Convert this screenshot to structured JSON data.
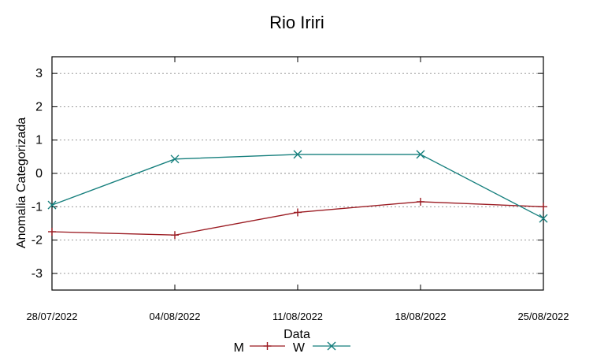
{
  "chart_data": {
    "type": "line",
    "title": "Rio Iriri",
    "xlabel": "Data",
    "ylabel": "Anomalia Categorizada",
    "categories": [
      "28/07/2022",
      "04/08/2022",
      "11/08/2022",
      "18/08/2022",
      "25/08/2022"
    ],
    "ylim": [
      -3.5,
      3.5
    ],
    "yticks": [
      "3",
      "2",
      "1",
      "0",
      "-1",
      "-2",
      "-3"
    ],
    "grid": true,
    "legend_position": "bottom-center",
    "series": [
      {
        "name": "M",
        "color": "#9b1b22",
        "marker": "plus",
        "values": [
          -1.75,
          -1.85,
          -1.17,
          -0.85,
          -1.0
        ]
      },
      {
        "name": "W",
        "color": "#167f7d",
        "marker": "cross",
        "values": [
          -0.95,
          0.43,
          0.57,
          0.57,
          -1.35
        ]
      }
    ]
  }
}
